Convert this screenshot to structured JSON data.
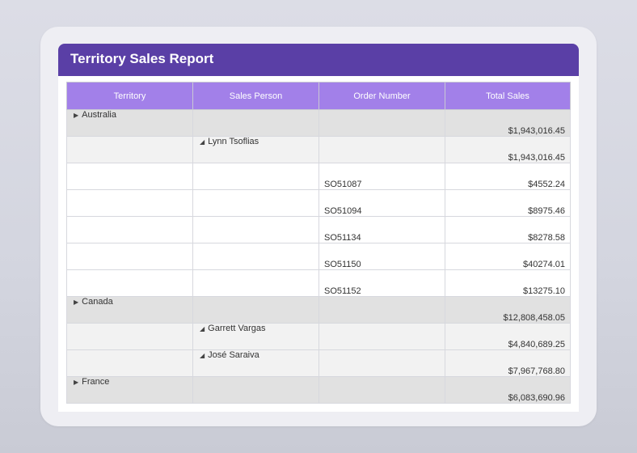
{
  "report": {
    "title": "Territory Sales Report",
    "columns": [
      "Territory",
      "Sales Person",
      "Order Number",
      "Total Sales"
    ],
    "rows": [
      {
        "territory": "Australia",
        "person": "",
        "order": "",
        "total": "$1,943,016.45"
      },
      {
        "territory": "",
        "person": "Lynn Tsoflias",
        "order": "",
        "total": "$1,943,016.45"
      },
      {
        "territory": "",
        "person": "",
        "order": "SO51087",
        "total": "$4552.24"
      },
      {
        "territory": "",
        "person": "",
        "order": "SO51094",
        "total": "$8975.46"
      },
      {
        "territory": "",
        "person": "",
        "order": "SO51134",
        "total": "$8278.58"
      },
      {
        "territory": "",
        "person": "",
        "order": "SO51150",
        "total": "$40274.01"
      },
      {
        "territory": "",
        "person": "",
        "order": "SO51152",
        "total": "$13275.10"
      },
      {
        "territory": "Canada",
        "person": "",
        "order": "",
        "total": "$12,808,458.05"
      },
      {
        "territory": "",
        "person": "Garrett Vargas",
        "order": "",
        "total": "$4,840,689.25"
      },
      {
        "territory": "",
        "person": "José Saraiva",
        "order": "",
        "total": "$7,967,768.80"
      },
      {
        "territory": "France",
        "person": "",
        "order": "",
        "total": "$6,083,690.96"
      }
    ]
  },
  "icons": {
    "collapsed": "triangle-right-icon",
    "expanded": "triangle-down-icon"
  },
  "colors": {
    "header_bar": "#5a3fa6",
    "column_header": "#a280e9",
    "territory_row": "#e1e1e1",
    "person_row": "#f2f2f2",
    "order_row": "#ffffff"
  }
}
